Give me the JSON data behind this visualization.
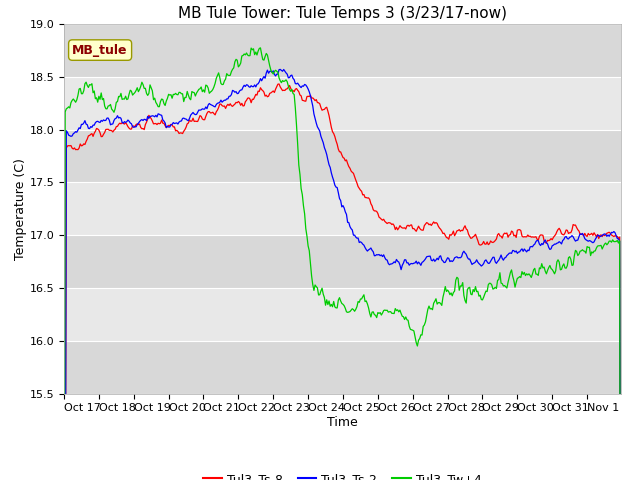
{
  "title": "MB Tule Tower: Tule Temps 3 (3/23/17-now)",
  "xlabel": "Time",
  "ylabel": "Temperature (C)",
  "ylim": [
    15.5,
    19.0
  ],
  "xtick_labels": [
    "Oct 17",
    "Oct 18",
    "Oct 19",
    "Oct 20",
    "Oct 21",
    "Oct 22",
    "Oct 23",
    "Oct 24",
    "Oct 25",
    "Oct 26",
    "Oct 27",
    "Oct 28",
    "Oct 29",
    "Oct 30",
    "Oct 31",
    "Nov 1"
  ],
  "ytick_values": [
    15.5,
    16.0,
    16.5,
    17.0,
    17.5,
    18.0,
    18.5,
    19.0
  ],
  "line_colors": [
    "#ff0000",
    "#0000ff",
    "#00cc00"
  ],
  "line_labels": [
    "Tul3_Ts-8",
    "Tul3_Ts-2",
    "Tul3_Tw+4"
  ],
  "legend_label": "MB_tule",
  "legend_text_color": "#8b0000",
  "legend_box_color": "#ffffcc",
  "plot_bg_color": "#e8e8e8",
  "title_fontsize": 11,
  "axis_fontsize": 9,
  "tick_fontsize": 8,
  "n_points": 480,
  "n_days": 16
}
